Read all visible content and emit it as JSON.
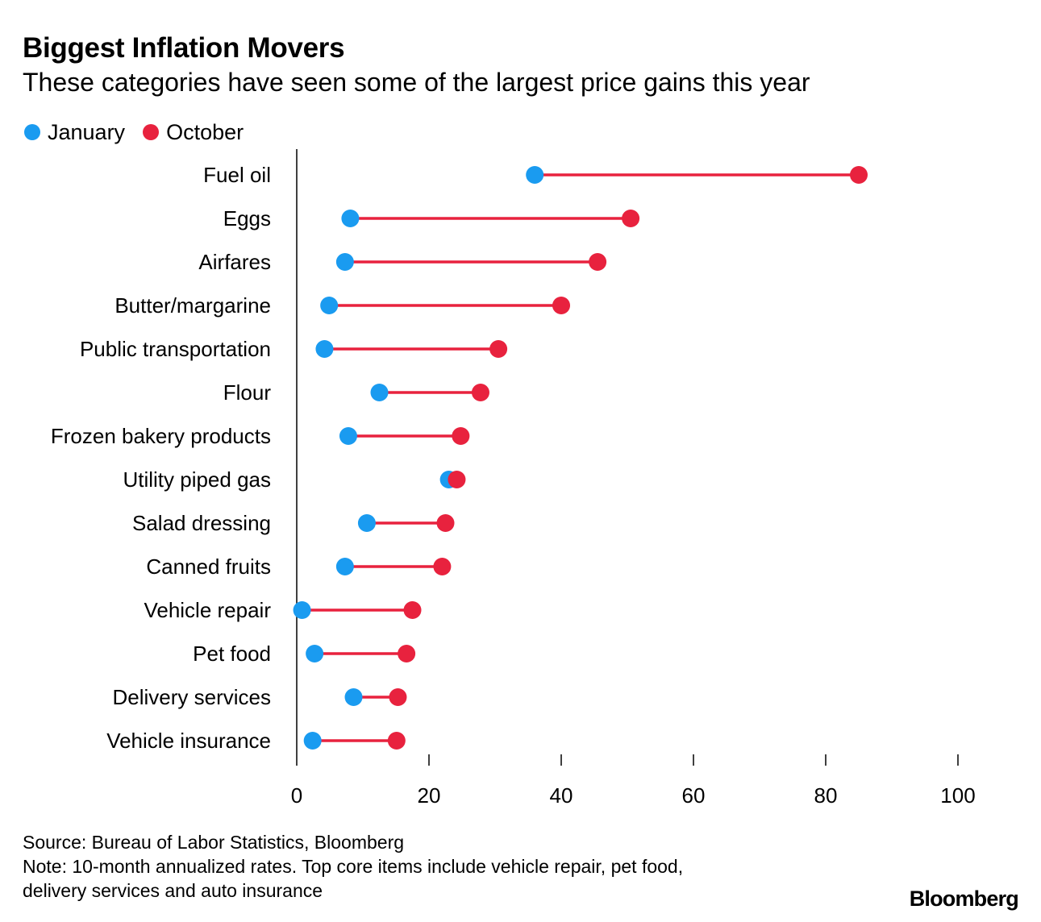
{
  "colors": {
    "january": "#1a9bf0",
    "october": "#e8223e",
    "axis": "#000000"
  },
  "chart_data": {
    "type": "dumbbell",
    "title": "Biggest Inflation Movers",
    "subtitle": "These categories have seen some of the largest price gains this year",
    "xlim": [
      0,
      100
    ],
    "xticks": [
      0,
      20,
      40,
      60,
      80,
      100
    ],
    "tick_labels": [
      "0",
      "20",
      "40",
      "60",
      "80",
      "100"
    ],
    "legend": [
      {
        "name": "January",
        "color_key": "january"
      },
      {
        "name": "October",
        "color_key": "october"
      }
    ],
    "categories": [
      "Fuel oil",
      "Eggs",
      "Airfares",
      "Butter/margarine",
      "Public transportation",
      "Flour",
      "Frozen bakery products",
      "Utility piped gas",
      "Salad dressing",
      "Canned fruits",
      "Vehicle repair",
      "Pet food",
      "Delivery services",
      "Vehicle insurance"
    ],
    "series": [
      {
        "name": "January",
        "values": [
          36.0,
          8.1,
          7.3,
          4.9,
          4.2,
          12.5,
          7.8,
          23.0,
          10.6,
          7.3,
          0.8,
          2.7,
          8.6,
          2.4
        ]
      },
      {
        "name": "October",
        "values": [
          85.0,
          50.5,
          45.5,
          40.0,
          30.5,
          27.8,
          24.8,
          24.2,
          22.5,
          22.0,
          17.5,
          16.6,
          15.3,
          15.1
        ]
      }
    ]
  },
  "footer": {
    "source": "Source: Bureau of Labor Statistics, Bloomberg",
    "note_line1": "Note: 10-month annualized rates. Top core items include vehicle repair, pet food,",
    "note_line2": "delivery services and auto insurance"
  },
  "brand": "Bloomberg"
}
